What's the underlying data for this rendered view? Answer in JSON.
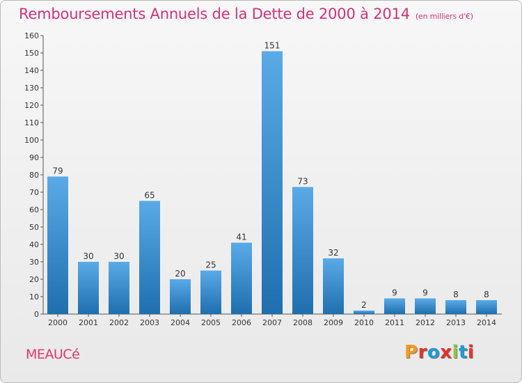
{
  "title": "Remboursements Annuels de la Dette de 2000 à 2014",
  "subtitle": "(en milliers d'€)",
  "town": "MEAUCé",
  "logo": "Proxiti",
  "colors": {
    "title": "#d0327a",
    "bar_light": "#5aaae8",
    "bar_dark": "#1f6fae",
    "logo": [
      "#f39a1b",
      "#e8302c",
      "#1e9ad6",
      "#e8302c",
      "#8dc63f",
      "#1e9ad6",
      "#e8302c"
    ]
  },
  "chart_data": {
    "type": "bar",
    "title": "Remboursements Annuels de la Dette de 2000 à 2014",
    "categories": [
      "2000",
      "2001",
      "2002",
      "2003",
      "2004",
      "2005",
      "2006",
      "2007",
      "2008",
      "2009",
      "2010",
      "2011",
      "2012",
      "2013",
      "2014"
    ],
    "values": [
      79,
      30,
      30,
      65,
      20,
      25,
      41,
      151,
      73,
      32,
      2,
      9,
      9,
      8,
      8
    ],
    "ylim": [
      0,
      160
    ],
    "yticks": [
      0,
      10,
      20,
      30,
      40,
      50,
      60,
      70,
      80,
      90,
      100,
      110,
      120,
      130,
      140,
      150,
      160
    ],
    "grid": false,
    "xlabel": "",
    "ylabel": ""
  }
}
